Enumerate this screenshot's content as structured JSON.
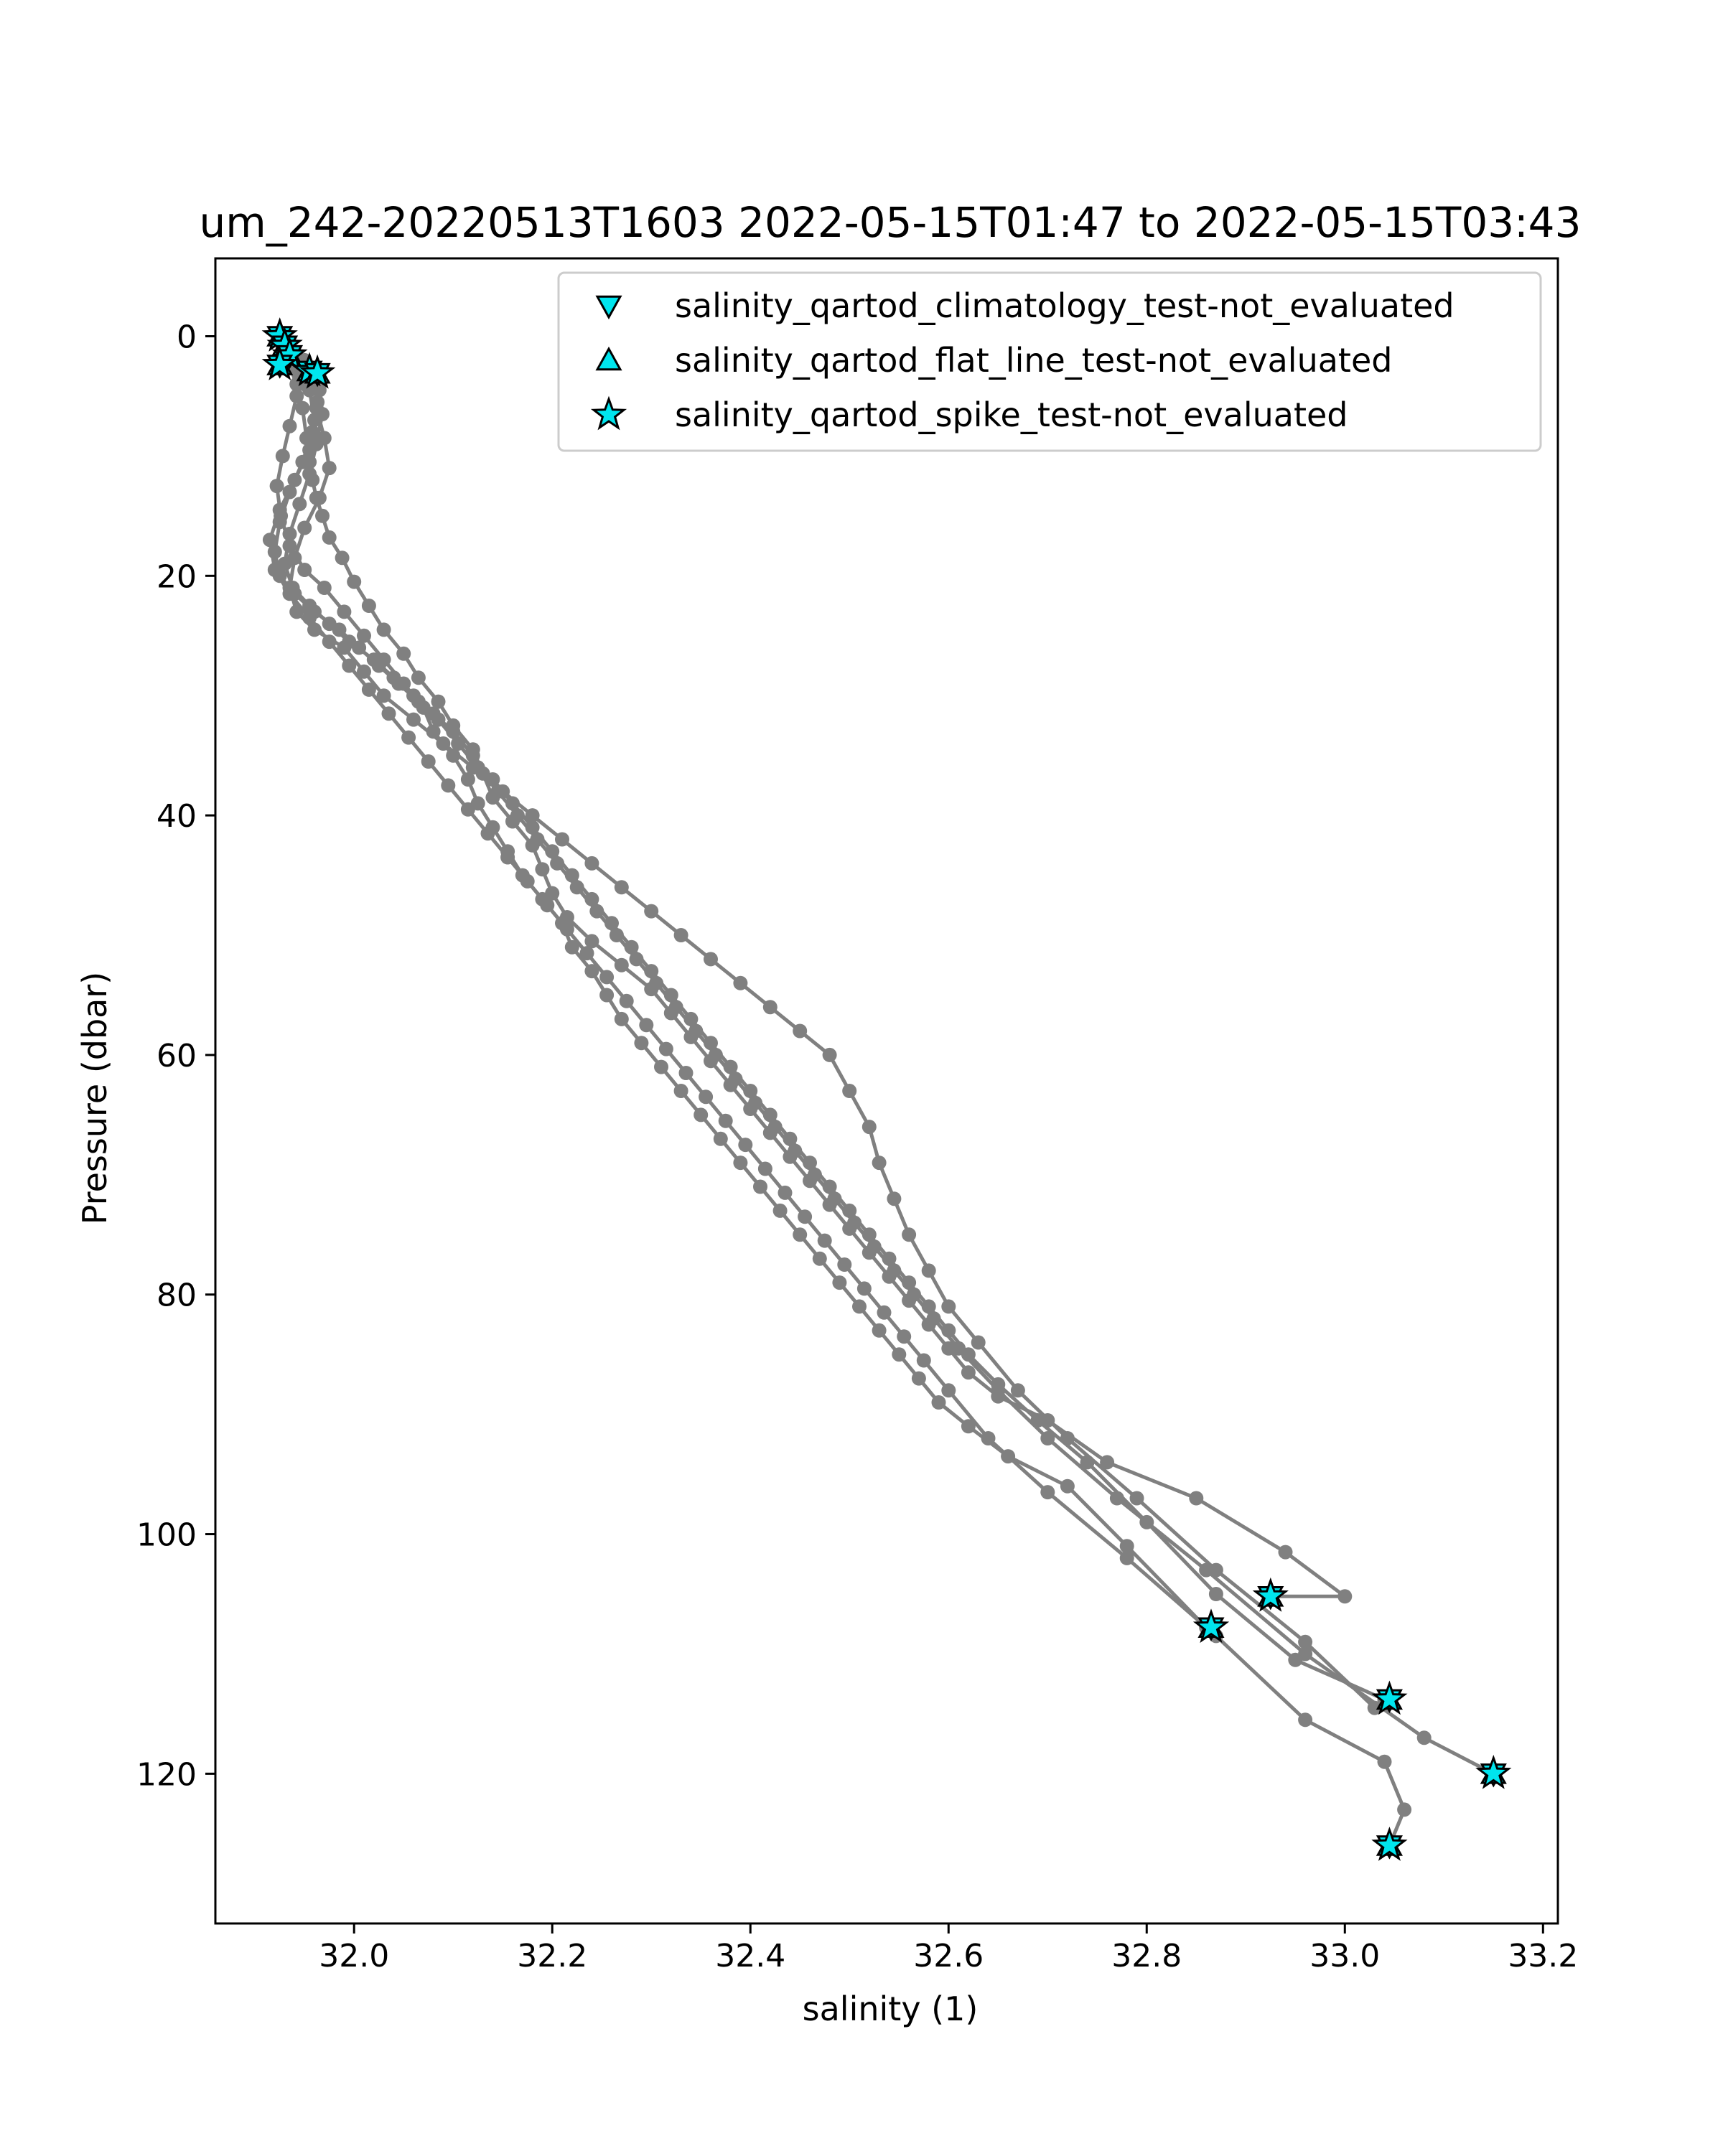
{
  "chart_data": {
    "type": "scatter",
    "title": "um_242-20220513T1603 2022-05-15T01:47 to 2022-05-15T03:43",
    "xlabel": "salinity (1)",
    "ylabel": "Pressure (dbar)",
    "xlim": [
      31.86,
      33.215
    ],
    "ylim": [
      132.5,
      -6.5
    ],
    "y_inverted": true,
    "grid": false,
    "legend_position": "top-right",
    "x_ticks": [
      32.0,
      32.2,
      32.4,
      32.6,
      32.8,
      33.0,
      33.2
    ],
    "x_tick_labels": [
      "32.0",
      "32.2",
      "32.4",
      "32.6",
      "32.8",
      "33.0",
      "33.2"
    ],
    "y_ticks": [
      0,
      20,
      40,
      60,
      80,
      100,
      120
    ],
    "y_tick_labels": [
      "0",
      "20",
      "40",
      "60",
      "80",
      "100",
      "120"
    ],
    "profile_color": "#808080",
    "flag_color": "#00e5ee",
    "legend": [
      {
        "label": "salinity_qartod_climatology_test-not_evaluated",
        "marker": "triangle-down"
      },
      {
        "label": "salinity_qartod_flat_line_test-not_evaluated",
        "marker": "triangle-up"
      },
      {
        "label": "salinity_qartod_spike_test-not_evaluated",
        "marker": "star"
      }
    ],
    "series": [
      {
        "x": [
          31.925,
          31.928,
          31.932,
          31.935,
          31.942,
          31.948,
          31.952,
          31.955,
          31.958,
          31.962,
          31.968,
          31.975,
          31.988,
          32.0,
          32.015,
          32.03,
          32.05,
          32.065,
          32.085,
          32.1,
          32.12,
          32.13,
          32.14,
          32.16,
          32.18,
          32.19,
          32.2,
          32.215,
          32.24,
          32.27,
          32.3,
          32.32,
          32.34,
          32.36,
          32.38,
          32.4,
          32.42,
          32.44,
          32.46,
          32.48,
          32.5,
          32.52,
          32.54,
          32.56,
          32.58,
          32.6,
          32.62,
          32.65,
          32.7,
          32.76,
          32.85,
          32.94,
          33.0,
          32.925
        ],
        "y": [
          0.2,
          1.0,
          1.8,
          2.5,
          4.0,
          6.0,
          8.5,
          10.5,
          12.0,
          13.5,
          15.0,
          16.8,
          18.5,
          20.5,
          22.5,
          24.5,
          26.5,
          28.5,
          30.5,
          32.5,
          34.5,
          36.5,
          38.5,
          40.5,
          42.5,
          44.5,
          46.5,
          48.5,
          50.5,
          52.5,
          54.5,
          56.5,
          58.5,
          60.5,
          62.5,
          64.5,
          66.5,
          68.5,
          70.5,
          72.5,
          74.5,
          76.5,
          78.5,
          80.5,
          82.5,
          84.5,
          86.5,
          88.5,
          90.5,
          94.0,
          97.0,
          101.5,
          105.2,
          105.2
        ]
      },
      {
        "x": [
          31.93,
          31.94,
          31.945,
          31.942,
          31.935,
          31.928,
          31.922,
          31.926,
          31.935,
          31.95,
          31.97,
          31.99,
          32.01,
          32.03,
          32.05,
          32.07,
          32.08,
          32.1,
          32.115,
          32.125,
          32.14,
          32.155,
          32.17,
          32.19,
          32.21,
          32.22,
          32.24,
          32.255,
          32.27,
          32.29,
          32.31,
          32.33,
          32.35,
          32.37,
          32.39,
          32.41,
          32.43,
          32.45,
          32.47,
          32.49,
          32.51,
          32.53,
          32.55,
          32.57,
          32.59,
          32.62,
          32.66,
          32.72,
          32.78,
          32.86
        ],
        "y": [
          0.5,
          1.5,
          3.0,
          5.0,
          7.5,
          10.0,
          12.5,
          15.0,
          17.5,
          19.5,
          21.0,
          23.0,
          25.0,
          27.0,
          29.0,
          31.0,
          33.0,
          35.0,
          37.0,
          39.0,
          41.0,
          43.0,
          45.0,
          47.0,
          49.0,
          51.0,
          53.0,
          55.0,
          57.0,
          59.0,
          61.0,
          63.0,
          65.0,
          67.0,
          69.0,
          71.0,
          73.0,
          75.0,
          77.0,
          79.0,
          81.0,
          83.0,
          85.0,
          87.0,
          89.0,
          91.0,
          93.5,
          96.0,
          101.0,
          107.8
        ]
      },
      {
        "x": [
          31.96,
          31.965,
          31.968,
          31.962,
          31.955,
          31.945,
          31.935,
          31.93,
          31.938,
          31.955,
          31.975,
          31.995,
          32.02,
          32.04,
          32.06,
          32.08,
          32.1,
          32.12,
          32.14,
          32.16,
          32.18,
          32.2,
          32.22,
          32.24,
          32.26,
          32.28,
          32.3,
          32.32,
          32.34,
          32.36,
          32.38,
          32.4,
          32.42,
          32.44,
          32.46,
          32.48,
          32.5,
          32.52,
          32.54,
          32.56,
          32.58,
          32.6,
          32.62,
          32.65,
          32.69,
          32.74,
          32.8,
          32.87,
          32.95,
          33.04
        ],
        "y": [
          3.0,
          4.5,
          6.5,
          9.0,
          11.5,
          14.0,
          16.5,
          19.0,
          21.0,
          22.5,
          24.0,
          25.5,
          27.0,
          28.5,
          30.0,
          31.5,
          33.0,
          35.0,
          37.0,
          39.0,
          41.0,
          43.0,
          45.0,
          47.0,
          49.0,
          51.0,
          53.0,
          55.0,
          57.0,
          59.0,
          61.0,
          63.0,
          65.0,
          67.0,
          69.0,
          71.0,
          73.0,
          75.0,
          77.0,
          79.0,
          81.0,
          83.0,
          85.0,
          87.5,
          90.5,
          94.0,
          99.0,
          105.0,
          110.5,
          113.8
        ]
      },
      {
        "x": [
          31.95,
          31.958,
          31.963,
          31.958,
          31.948,
          31.935,
          31.925,
          31.92,
          31.925,
          31.94,
          31.96,
          31.985,
          32.005,
          32.025,
          32.045,
          32.065,
          32.085,
          32.105,
          32.125,
          32.145,
          32.165,
          32.185,
          32.205,
          32.225,
          32.245,
          32.265,
          32.285,
          32.305,
          32.325,
          32.345,
          32.365,
          32.385,
          32.405,
          32.425,
          32.445,
          32.465,
          32.485,
          32.505,
          32.525,
          32.545,
          32.565,
          32.585,
          32.61,
          32.65,
          32.7,
          32.77,
          32.86,
          32.96,
          33.08,
          33.15
        ],
        "y": [
          2.0,
          3.5,
          5.5,
          8.0,
          10.5,
          13.0,
          15.5,
          18.0,
          20.0,
          21.5,
          23.0,
          24.5,
          26.0,
          27.5,
          29.0,
          30.5,
          32.0,
          34.0,
          36.0,
          38.0,
          40.0,
          42.0,
          44.0,
          46.0,
          48.0,
          50.0,
          52.0,
          54.0,
          56.0,
          58.0,
          60.0,
          62.0,
          64.0,
          66.0,
          68.0,
          70.0,
          72.0,
          74.0,
          76.0,
          78.0,
          80.0,
          82.0,
          84.5,
          88.0,
          92.0,
          97.0,
          103.0,
          110.0,
          117.0,
          120.0
        ]
      },
      {
        "x": [
          31.93,
          31.945,
          31.955,
          31.96,
          31.955,
          31.94,
          31.925,
          31.915,
          31.92,
          31.935,
          31.955,
          31.975,
          31.995,
          32.015,
          32.035,
          32.055,
          32.075,
          32.095,
          32.115,
          32.135,
          32.155,
          32.175,
          32.195,
          32.215,
          32.235,
          32.255,
          32.275,
          32.295,
          32.315,
          32.335,
          32.355,
          32.375,
          32.395,
          32.415,
          32.435,
          32.455,
          32.475,
          32.495,
          32.515,
          32.535,
          32.555,
          32.575,
          32.6,
          32.64,
          32.7,
          32.78,
          32.87,
          32.96,
          33.04,
          33.06,
          33.045
        ],
        "y": [
          1.0,
          2.5,
          4.5,
          7.0,
          9.5,
          12.0,
          14.5,
          17.0,
          19.5,
          21.5,
          23.5,
          25.5,
          27.5,
          29.5,
          31.5,
          33.5,
          35.5,
          37.5,
          39.5,
          41.5,
          43.5,
          45.5,
          47.5,
          49.5,
          51.5,
          53.5,
          55.5,
          57.5,
          59.5,
          61.5,
          63.5,
          65.5,
          67.5,
          69.5,
          71.5,
          73.5,
          75.5,
          77.5,
          79.5,
          81.5,
          83.5,
          85.5,
          88.0,
          92.0,
          96.5,
          102.0,
          108.5,
          115.5,
          119.0,
          123.0,
          126.0
        ]
      },
      {
        "x": [
          31.95,
          31.962,
          31.97,
          31.975,
          31.965,
          31.95,
          31.94,
          31.935,
          31.942,
          31.96,
          31.99,
          32.01,
          32.03,
          32.06,
          32.09,
          32.12,
          32.15,
          32.18,
          32.21,
          32.24,
          32.27,
          32.3,
          32.33,
          32.36,
          32.39,
          32.42,
          32.45,
          32.48,
          32.5,
          32.52,
          32.53,
          32.545,
          32.56,
          32.58,
          32.6,
          32.63,
          32.67,
          32.72,
          32.79,
          32.87,
          32.96,
          33.03
        ],
        "y": [
          4.0,
          6.0,
          8.5,
          11.0,
          13.5,
          16.0,
          18.5,
          21.0,
          23.0,
          24.5,
          26.0,
          28.0,
          30.0,
          32.0,
          34.0,
          36.0,
          38.0,
          40.0,
          42.0,
          44.0,
          46.0,
          48.0,
          50.0,
          52.0,
          54.0,
          56.0,
          58.0,
          60.0,
          63.0,
          66.0,
          69.0,
          72.0,
          75.0,
          78.0,
          81.0,
          84.0,
          88.0,
          92.0,
          97.0,
          103.0,
          109.0,
          114.5
        ]
      }
    ],
    "flagged_points": [
      {
        "x": 31.925,
        "y": 0.0
      },
      {
        "x": 31.93,
        "y": 0.8
      },
      {
        "x": 31.935,
        "y": 1.6
      },
      {
        "x": 31.925,
        "y": 2.4
      },
      {
        "x": 31.955,
        "y": 2.9
      },
      {
        "x": 31.963,
        "y": 3.1
      },
      {
        "x": 32.925,
        "y": 105.2
      },
      {
        "x": 32.865,
        "y": 107.8
      },
      {
        "x": 33.045,
        "y": 113.8
      },
      {
        "x": 33.15,
        "y": 120.0
      },
      {
        "x": 33.045,
        "y": 126.0
      }
    ]
  }
}
